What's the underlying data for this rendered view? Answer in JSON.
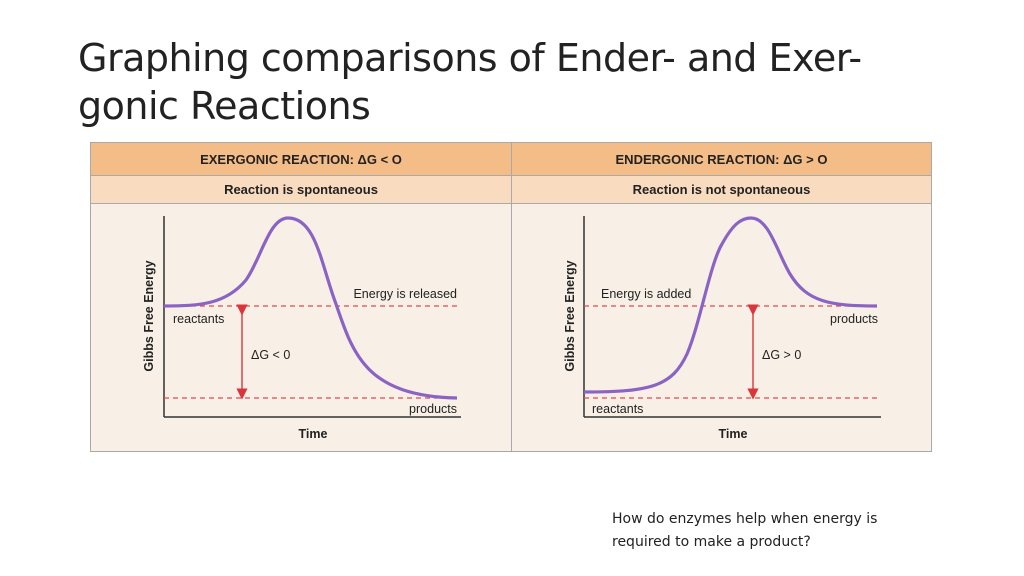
{
  "slide": {
    "title_line1": "Graphing comparisons of Ender- and Exer-",
    "title_line2": "gonic Reactions",
    "note": "How do enzymes help when energy is required to make a product?"
  },
  "exergonic": {
    "header": "EXERGONIC REACTION: ΔG < O",
    "subheader": "Reaction is spontaneous",
    "y_axis_label": "Gibbs Free Energy",
    "x_axis_label": "Time",
    "reactants_label": "reactants",
    "products_label": "products",
    "energy_label": "Energy is released",
    "delta_label": "ΔG < 0"
  },
  "endergonic": {
    "header": "ENDERGONIC REACTION: ΔG > O",
    "subheader": "Reaction is not spontaneous",
    "y_axis_label": "Gibbs Free Energy",
    "x_axis_label": "Time",
    "reactants_label": "reactants",
    "products_label": "products",
    "energy_label": "Energy is added",
    "delta_label": "ΔG > 0"
  },
  "colors": {
    "curve": "#8a63c4",
    "dashed_line": "#e04a4a",
    "arrow": "#d9353b",
    "header_bg": "#f4bc86",
    "subheader_bg": "#f9dcc0",
    "panel_bg": "#f8f0e6"
  }
}
